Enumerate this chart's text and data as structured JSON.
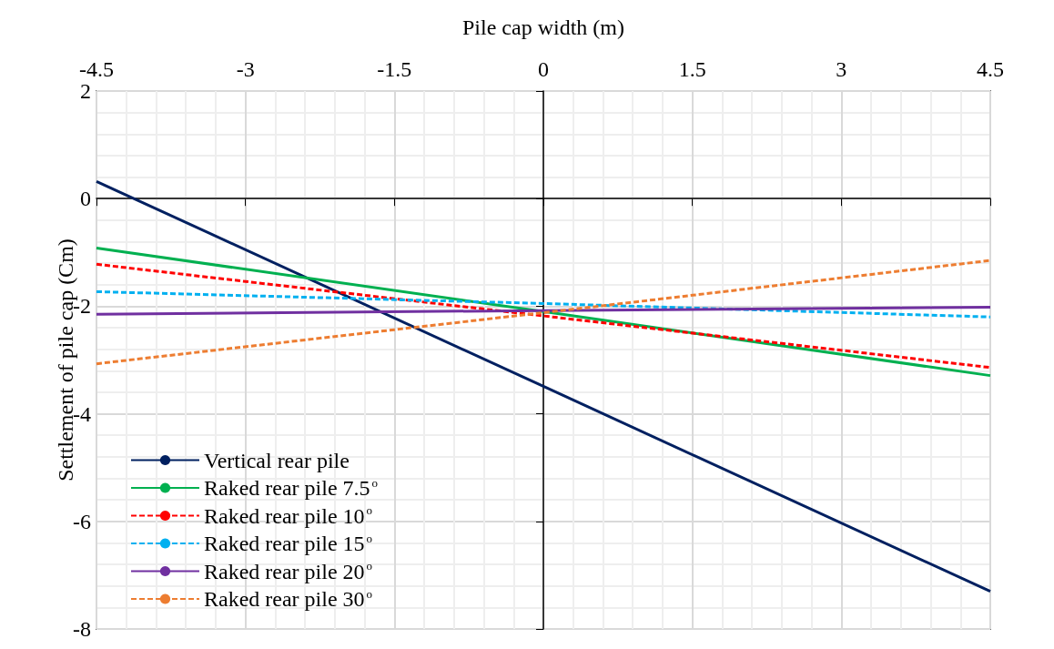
{
  "chart_data": {
    "type": "line",
    "xlabel": "Pile cap width (m)",
    "ylabel": "Settlement of pile cap (Cm)",
    "x": [
      -4.5,
      0,
      4.5
    ],
    "xlim": [
      -4.5,
      4.5
    ],
    "xticks": [
      -4.5,
      -3,
      -1.5,
      0,
      1.5,
      3,
      4.5
    ],
    "ylim": [
      -8,
      2
    ],
    "yticks": [
      -8,
      -6,
      -4,
      -2,
      0,
      2
    ],
    "grid": true,
    "legend": "bottom left",
    "series": [
      {
        "name": "Vertical rear pile",
        "color": "#002060",
        "line_style": "solid",
        "values": [
          0.32,
          -3.49,
          -7.3
        ]
      },
      {
        "name": "Raked rear pile 7.5$^{o}$",
        "color": "#00b050",
        "line_style": "solid",
        "values": [
          -0.92,
          -2.1,
          -3.29
        ]
      },
      {
        "name": "Raked rear pile 10$^{o}$",
        "color": "#ff0000",
        "line_style": "dashed",
        "values": [
          -1.22,
          -2.18,
          -3.14
        ]
      },
      {
        "name": "Raked rear pile 15$^{o}$",
        "color": "#00b0f0",
        "line_style": "dashed",
        "values": [
          -1.73,
          -1.95,
          -2.2
        ]
      },
      {
        "name": "Raked rear pile 20$^{o}$",
        "color": "#7030a0",
        "line_style": "solid",
        "values": [
          -2.15,
          -2.08,
          -2.02
        ]
      },
      {
        "name": "Raked rear pile 30$^{o}$",
        "color": "#ed7d31",
        "line_style": "dashed",
        "values": [
          -3.07,
          -2.12,
          -1.15
        ]
      }
    ]
  }
}
